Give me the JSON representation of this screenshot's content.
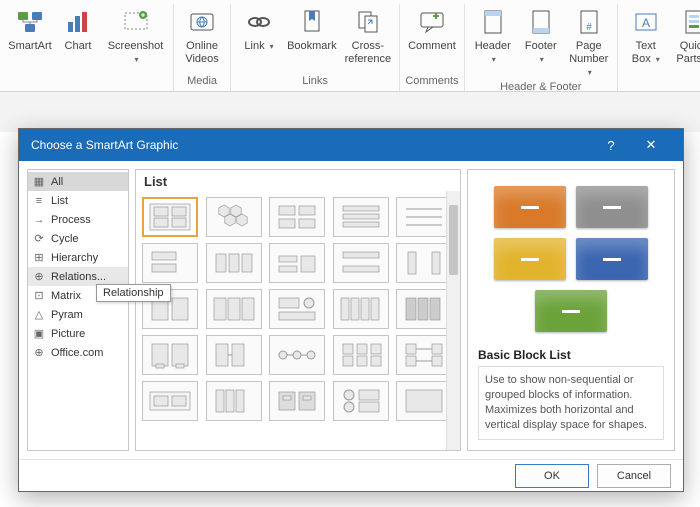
{
  "ribbon": {
    "groups": [
      {
        "label": "",
        "buttons": [
          {
            "label": "SmartArt",
            "dd": false
          },
          {
            "label": "Chart",
            "dd": false
          },
          {
            "label": "Screenshot",
            "dd": true
          }
        ]
      },
      {
        "label": "Media",
        "buttons": [
          {
            "label": "Online\nVideos",
            "dd": false
          }
        ]
      },
      {
        "label": "Links",
        "buttons": [
          {
            "label": "Link",
            "dd": true
          },
          {
            "label": "Bookmark",
            "dd": false
          },
          {
            "label": "Cross-\nreference",
            "dd": false
          }
        ]
      },
      {
        "label": "Comments",
        "buttons": [
          {
            "label": "Comment",
            "dd": false
          }
        ]
      },
      {
        "label": "Header & Footer",
        "buttons": [
          {
            "label": "Header",
            "dd": true
          },
          {
            "label": "Footer",
            "dd": true
          },
          {
            "label": "Page\nNumber",
            "dd": true
          }
        ]
      },
      {
        "label": "",
        "buttons": [
          {
            "label": "Text\nBox",
            "dd": true
          },
          {
            "label": "Quick\nParts",
            "dd": true
          }
        ]
      }
    ]
  },
  "dialog": {
    "title": "Choose a SmartArt Graphic",
    "help": "?",
    "close": "✕",
    "categories": [
      {
        "label": "All",
        "sel": true
      },
      {
        "label": "List"
      },
      {
        "label": "Process"
      },
      {
        "label": "Cycle"
      },
      {
        "label": "Hierarchy"
      },
      {
        "label": "Relations...",
        "hover": true,
        "tooltip": "Relationship"
      },
      {
        "label": "Matrix"
      },
      {
        "label": "Pyram"
      },
      {
        "label": "Picture"
      },
      {
        "label": "Office.com"
      }
    ],
    "gallery_heading": "List",
    "preview": {
      "blocks": [
        {
          "color": "#d97a2a"
        },
        {
          "color": "#8f8f8f"
        },
        {
          "color": "#e2b42e"
        },
        {
          "color": "#3b66b0"
        },
        {
          "color": "#6ca23a"
        }
      ],
      "title": "Basic Block List",
      "desc": "Use to show non-sequential or grouped blocks of information. Maximizes both horizontal and vertical display space for shapes."
    },
    "ok": "OK",
    "cancel": "Cancel"
  }
}
